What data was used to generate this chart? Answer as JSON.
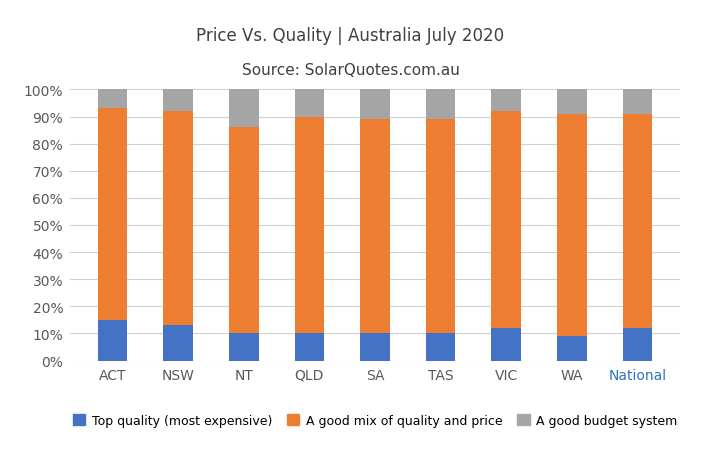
{
  "categories": [
    "ACT",
    "NSW",
    "NT",
    "QLD",
    "SA",
    "TAS",
    "VIC",
    "WA",
    "National"
  ],
  "top_quality": [
    15,
    13,
    10,
    10,
    10,
    10,
    12,
    9,
    12
  ],
  "good_mix": [
    78,
    79,
    76,
    80,
    79,
    79,
    80,
    82,
    79
  ],
  "budget": [
    7,
    8,
    14,
    10,
    11,
    11,
    8,
    9,
    9
  ],
  "color_blue": "#4472C4",
  "color_orange": "#ED7D31",
  "color_gray": "#A5A5A5",
  "title_line1": "Price Vs. Quality | Australia July 2020",
  "title_line2": "Source: SolarQuotes.com.au",
  "legend_labels": [
    "Top quality (most expensive)",
    "A good mix of quality and price",
    "A good budget system"
  ],
  "ylabel_ticks": [
    "0%",
    "10%",
    "20%",
    "30%",
    "40%",
    "50%",
    "60%",
    "70%",
    "80%",
    "90%",
    "100%"
  ],
  "ytick_values": [
    0,
    10,
    20,
    30,
    40,
    50,
    60,
    70,
    80,
    90,
    100
  ],
  "background_color": "#FFFFFF",
  "grid_color": "#D0D0D0",
  "title_color": "#404040",
  "tick_color": "#595959",
  "national_color": "#2E74B5",
  "bar_width": 0.45
}
